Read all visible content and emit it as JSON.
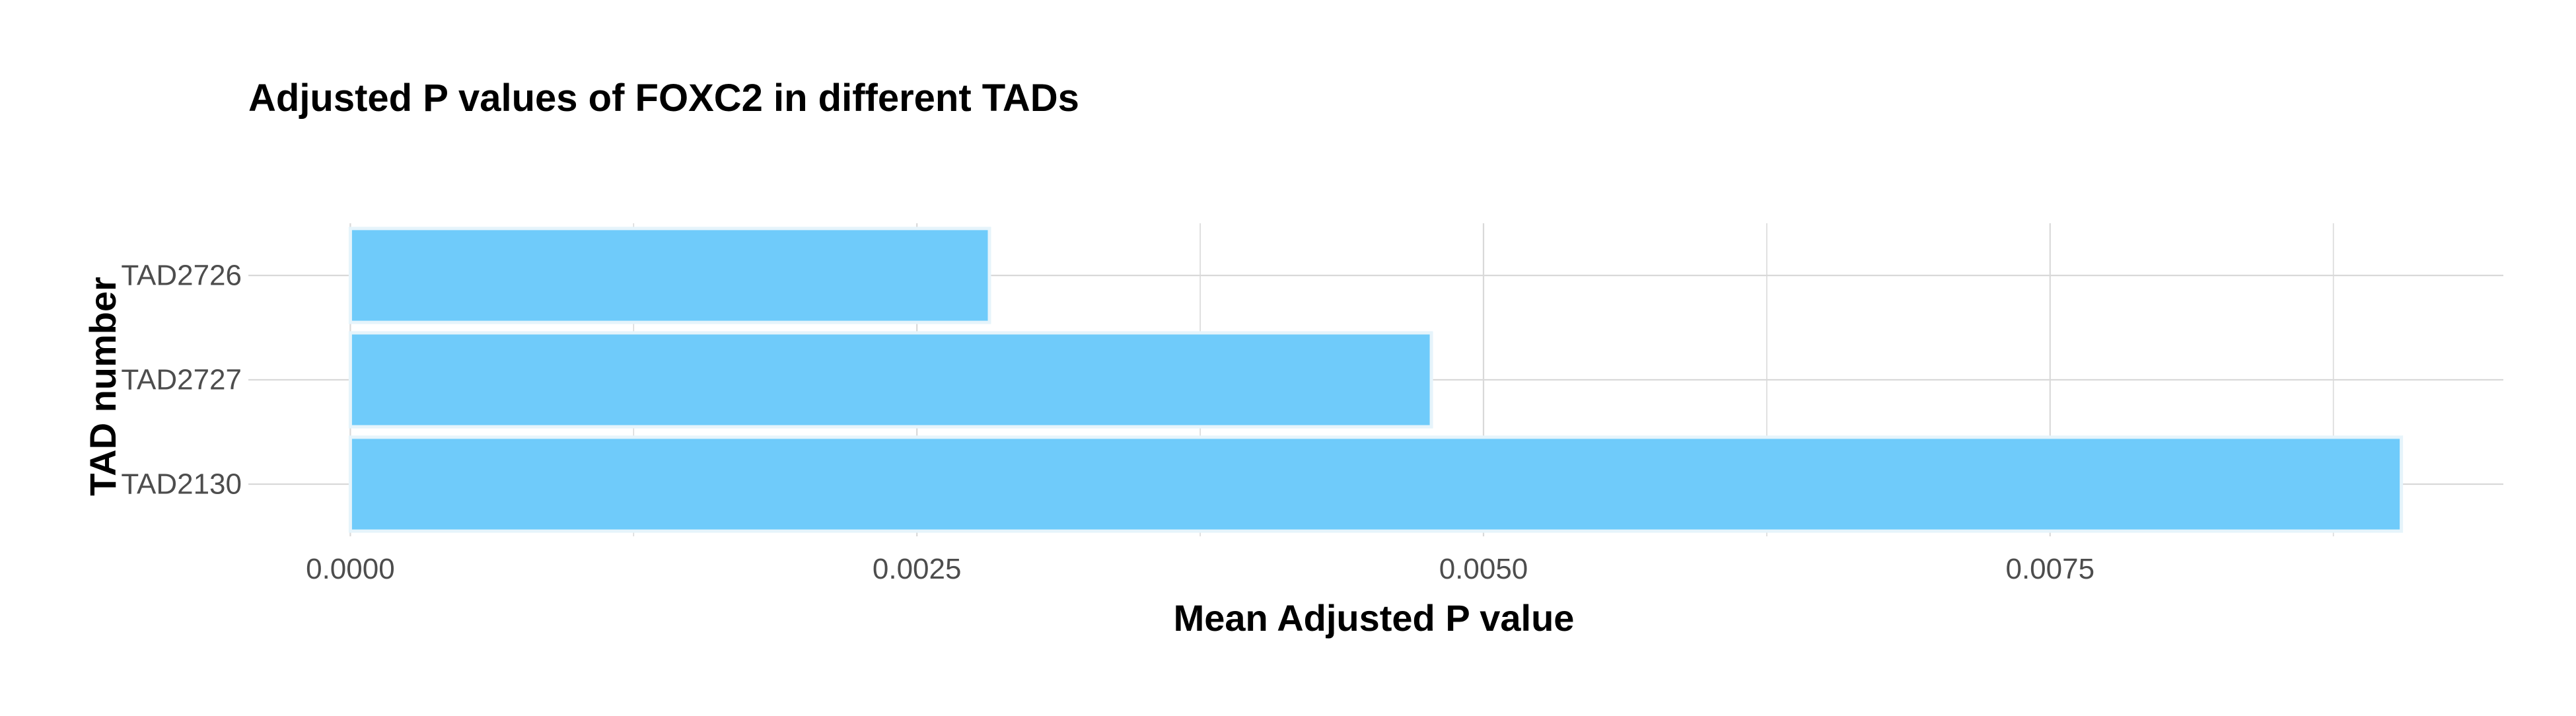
{
  "chart_data": {
    "type": "bar",
    "orientation": "horizontal",
    "title": "Adjusted P values of FOXC2 in different TADs",
    "xlabel": "Mean Adjusted P value",
    "ylabel": "TAD number",
    "categories": [
      "TAD2130",
      "TAD2727",
      "TAD2726"
    ],
    "values": [
      0.00905,
      0.00477,
      0.00282
    ],
    "xlim": [
      -0.00045,
      0.0095
    ],
    "x_ticks": [
      0.0,
      0.0025,
      0.005,
      0.0075
    ],
    "x_tick_labels": [
      "0.0000",
      "0.0025",
      "0.0050",
      "0.0075"
    ],
    "x_minor_ticks": [
      0.00125,
      0.00375,
      0.00625,
      0.00875
    ],
    "grid": true,
    "legend": "none",
    "colors": {
      "bar_fill": "#6FCBFA",
      "bar_stroke": "#E6F4FB",
      "grid": "#D9D9D9",
      "text": "#000000",
      "tick_text": "#4D4D4D"
    }
  }
}
